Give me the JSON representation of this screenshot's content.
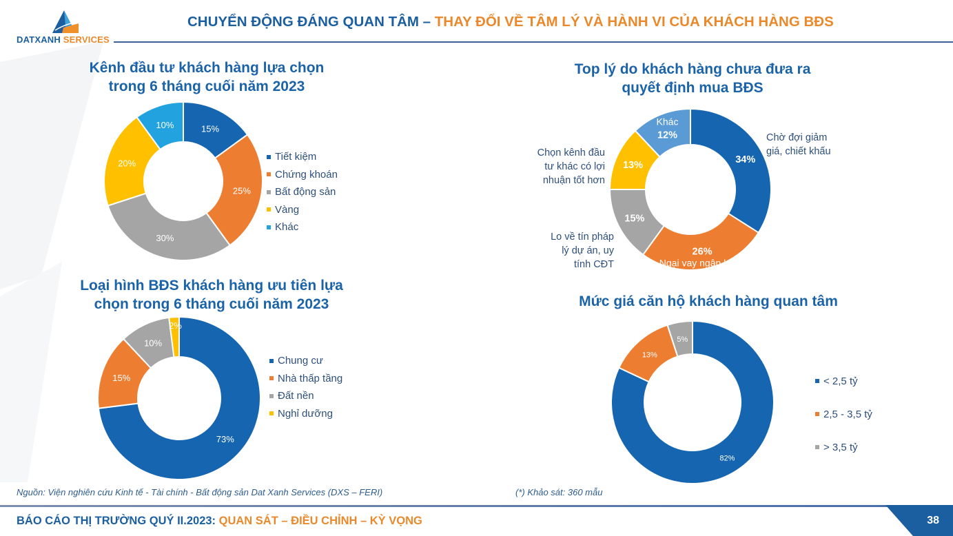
{
  "header": {
    "title_part1": "CHUYỂN ĐỘNG ĐÁNG QUAN TÂM – ",
    "title_part2": "THAY ĐỔI VỀ TÂM LÝ VÀ HÀNH VI CỦA KHÁCH HÀNG BĐS"
  },
  "logo": {
    "text_part1": "DATXANH",
    "text_part2": " SERVICES"
  },
  "colors": {
    "blue": "#1565b0",
    "orange": "#ed7d31",
    "gray": "#a5a5a5",
    "yellow": "#ffc000",
    "lightblue": "#22a3e0",
    "steelblue": "#5b9bd5",
    "title": "#1b63a8"
  },
  "chart_data": [
    {
      "type": "pie",
      "title_line1": "Kênh đầu tư khách hàng lựa chọn",
      "title_line2": "trong 6 tháng cuối năm 2023",
      "legend": "right",
      "slices": [
        {
          "label": "Tiết kiệm",
          "value": 15,
          "display": "15%",
          "color": "#1565b0"
        },
        {
          "label": "Chứng khoán",
          "value": 25,
          "display": "25%",
          "color": "#ed7d31"
        },
        {
          "label": "Bất động sản",
          "value": 30,
          "display": "30%",
          "color": "#a5a5a5"
        },
        {
          "label": "Vàng",
          "value": 20,
          "display": "20%",
          "color": "#ffc000"
        },
        {
          "label": "Khác",
          "value": 10,
          "display": "10%",
          "color": "#22a3e0"
        }
      ]
    },
    {
      "type": "pie",
      "title_line1": "Top lý do khách hàng chưa đưa ra",
      "title_line2": "quyết định mua BĐS",
      "slices": [
        {
          "label": "Chờ đợi giảm giá, chiết khấu",
          "value": 34,
          "display": "34%",
          "color": "#1565b0"
        },
        {
          "label": "Ngại vay ngân hàng",
          "value": 26,
          "display": "26%",
          "color": "#ed7d31"
        },
        {
          "label": "Lo về tín pháp lý dự án, uy tính CĐT",
          "value": 15,
          "display": "15%",
          "color": "#a5a5a5"
        },
        {
          "label": "Chọn kênh đầu tư khác có lợi nhuận tốt hơn",
          "value": 13,
          "display": "13%",
          "color": "#ffc000"
        },
        {
          "label": "Khác",
          "value": 12,
          "display": "12%",
          "color": "#5b9bd5"
        }
      ]
    },
    {
      "type": "pie",
      "title_line1": "Loại hình BĐS khách hàng ưu tiên lựa",
      "title_line2": "chọn trong 6 tháng cuối năm 2023",
      "legend": "right",
      "slices": [
        {
          "label": "Chung cư",
          "value": 73,
          "display": "73%",
          "color": "#1565b0"
        },
        {
          "label": "Nhà thấp tầng",
          "value": 15,
          "display": "15%",
          "color": "#ed7d31"
        },
        {
          "label": "Đất nền",
          "value": 10,
          "display": "10%",
          "color": "#a5a5a5"
        },
        {
          "label": "Nghỉ dưỡng",
          "value": 2,
          "display": "2%",
          "color": "#ffc000"
        }
      ]
    },
    {
      "type": "pie",
      "title_line1": "Mức giá căn hộ khách hàng quan tâm",
      "legend": "right",
      "slices": [
        {
          "label": "< 2,5 tỷ",
          "value": 82,
          "display": "82%",
          "color": "#1565b0"
        },
        {
          "label": "2,5 - 3,5 tỷ",
          "value": 13,
          "display": "13%",
          "color": "#ed7d31"
        },
        {
          "label": "> 3,5 tỷ",
          "value": 5,
          "display": "5%",
          "color": "#a5a5a5"
        }
      ]
    }
  ],
  "notes": {
    "source": "Nguồn: Viện nghiên cứu Kinh tế - Tài chính - Bất động sản Dat Xanh Services (DXS – FERI)",
    "survey": "(*) Khảo sát: 360 mẫu"
  },
  "footer": {
    "part1": "BÁO CÁO THỊ TRƯỜNG QUÝ II.2023: ",
    "part2": "QUAN SÁT – ĐIỀU CHỈNH – KỲ VỌNG",
    "page": "38"
  },
  "chart2_labels": {
    "l0a": "Chờ đợi giảm",
    "l0b": "giá, chiết khấu",
    "l3a": "Chọn kênh đầu",
    "l3b": "tư khác có lợi",
    "l3c": "nhuận tốt hơn",
    "l2a": "Lo về tín pháp",
    "l2b": "lý dự án, uy",
    "l2c": "tính CĐT"
  }
}
